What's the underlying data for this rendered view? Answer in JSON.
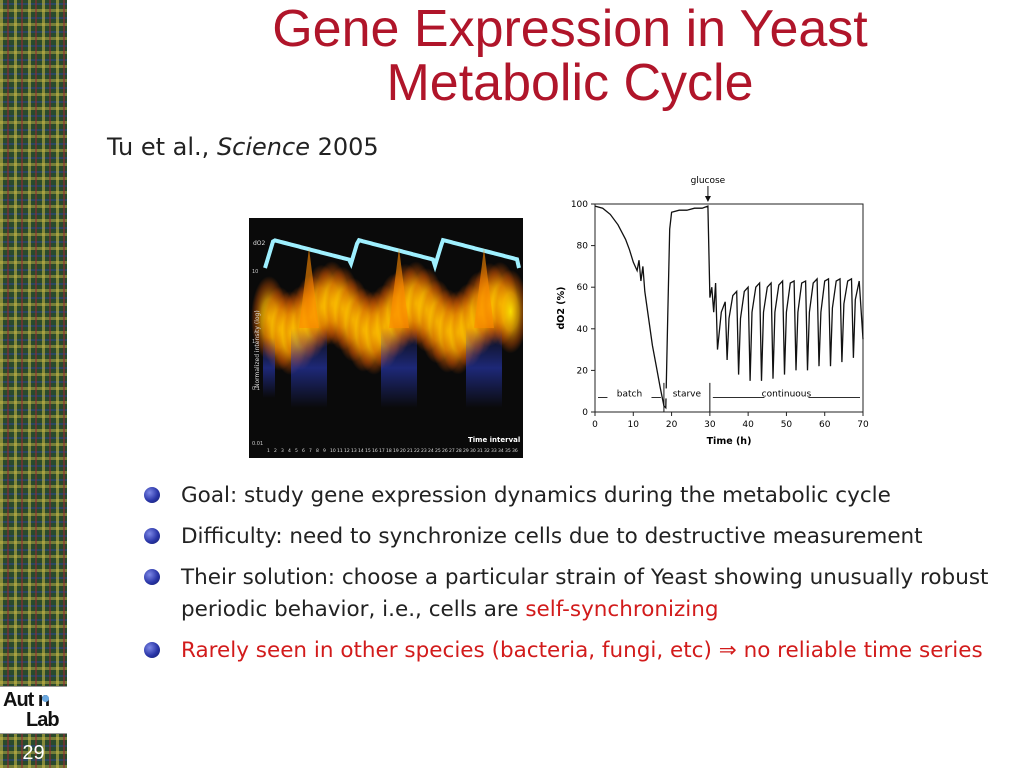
{
  "slide": {
    "title_line1": "Gene Expression in Yeast",
    "title_line2": "Metabolic Cycle",
    "citation": {
      "authors": "Tu et al.,",
      "journal": "Science",
      "year": "2005"
    },
    "slide_number": "29",
    "logo": {
      "line1": "Aut n",
      "line2": "Lab"
    }
  },
  "left_figure": {
    "top_trace_label": "dO2",
    "y_axis_label": "Normalized intensity (log)",
    "y_ticks": [
      "10",
      "1",
      "0.1",
      "0.01"
    ],
    "x_label": "Time interval",
    "x_ticks": [
      "1",
      "2",
      "3",
      "4",
      "5",
      "6",
      "7",
      "8",
      "9",
      "10",
      "11",
      "12",
      "13",
      "14",
      "15",
      "16",
      "17",
      "18",
      "19",
      "20",
      "21",
      "22",
      "23",
      "24",
      "25",
      "26",
      "27",
      "28",
      "29",
      "30",
      "31",
      "32",
      "33",
      "34",
      "35",
      "36"
    ]
  },
  "chart_data": {
    "type": "line",
    "annotation": "glucose",
    "xlabel": "Time (h)",
    "ylabel": "dO2 (%)",
    "xlim": [
      0,
      70
    ],
    "ylim": [
      0,
      100
    ],
    "x_ticks": [
      0,
      10,
      20,
      30,
      40,
      50,
      60,
      70
    ],
    "y_ticks": [
      0,
      20,
      40,
      60,
      80,
      100
    ],
    "phases": [
      {
        "label": "batch",
        "start": 0,
        "end": 18
      },
      {
        "label": "starve",
        "start": 18,
        "end": 30
      },
      {
        "label": "continuous",
        "start": 30,
        "end": 70
      }
    ],
    "series": [
      {
        "x": [
          0,
          2,
          4,
          6,
          8,
          9,
          10,
          11,
          11.5,
          12,
          12.5,
          13,
          14,
          15,
          16,
          17,
          18,
          18.5,
          19,
          19.5,
          20,
          22,
          24,
          26,
          28,
          29.5,
          30,
          30.5,
          31,
          31.5,
          32,
          33,
          34,
          34.5,
          35,
          36,
          37,
          37.5,
          38,
          39,
          40,
          40.5,
          41,
          42,
          43,
          43.5,
          44,
          45,
          46,
          46.5,
          47,
          48,
          49,
          49.5,
          50,
          51,
          52,
          52.5,
          53,
          54,
          55,
          55.5,
          56,
          57,
          58,
          58.5,
          59,
          60,
          61,
          61.5,
          62,
          63,
          64,
          64.5,
          65,
          66,
          67,
          67.5,
          68,
          69,
          70
        ],
        "y": [
          99,
          98,
          95,
          90,
          83,
          78,
          72,
          68,
          73,
          63,
          70,
          58,
          45,
          32,
          22,
          12,
          3,
          2,
          45,
          88,
          96,
          97,
          97,
          98,
          98,
          99,
          55,
          60,
          48,
          62,
          30,
          48,
          53,
          25,
          45,
          56,
          58,
          18,
          45,
          58,
          60,
          15,
          48,
          60,
          62,
          15,
          48,
          60,
          62,
          16,
          48,
          61,
          63,
          18,
          48,
          62,
          63,
          20,
          48,
          62,
          63,
          20,
          48,
          62,
          64,
          22,
          48,
          63,
          64,
          22,
          50,
          63,
          64,
          24,
          52,
          63,
          64,
          26,
          54,
          63,
          35
        ]
      }
    ]
  },
  "bullets": [
    {
      "text": "Goal: study gene expression dynamics during the metabolic cycle"
    },
    {
      "text": "Difficulty: need to synchronize cells due to destructive measurement"
    },
    {
      "text_before": "Their solution: choose a particular strain of Yeast showing unusually robust periodic behavior, i.e., cells are ",
      "highlight": "self-synchronizing"
    },
    {
      "text": "Rarely seen in other species (bacteria, fungi, etc) ⇒ no reliable time series",
      "color": "#d21b1b"
    }
  ]
}
